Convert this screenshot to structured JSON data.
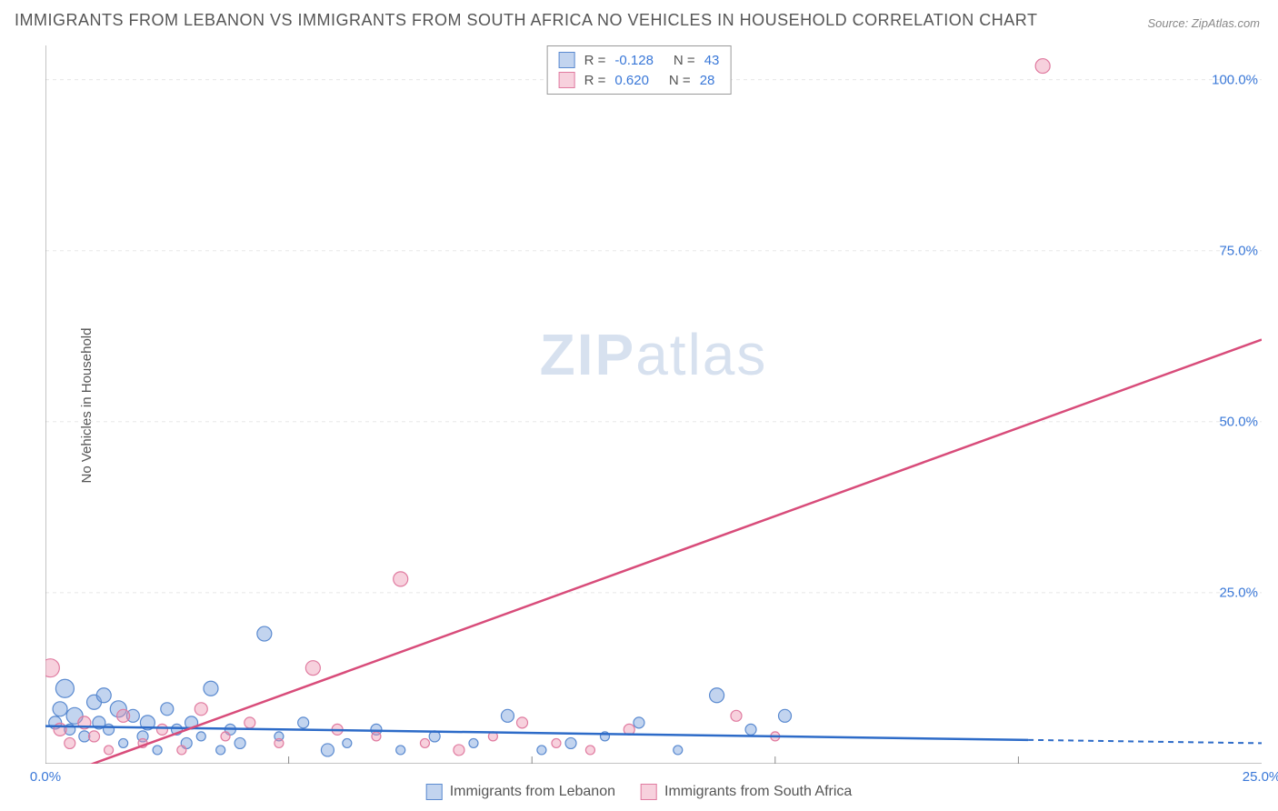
{
  "title": "IMMIGRANTS FROM LEBANON VS IMMIGRANTS FROM SOUTH AFRICA NO VEHICLES IN HOUSEHOLD CORRELATION CHART",
  "source": "Source: ZipAtlas.com",
  "ylabel": "No Vehicles in Household",
  "watermark_bold": "ZIP",
  "watermark_rest": "atlas",
  "chart": {
    "type": "scatter",
    "xlim": [
      0,
      25
    ],
    "ylim": [
      0,
      105
    ],
    "xtick_labels": [
      "0.0%",
      "25.0%"
    ],
    "xtick_positions": [
      0,
      25
    ],
    "ytick_labels": [
      "25.0%",
      "50.0%",
      "75.0%",
      "100.0%"
    ],
    "ytick_positions": [
      25,
      50,
      75,
      100
    ],
    "x_minor_ticks": [
      5,
      10,
      15,
      20
    ],
    "grid_color": "#e8e8e8",
    "axis_color": "#888888",
    "background_color": "#ffffff",
    "series": [
      {
        "name": "Immigrants from Lebanon",
        "fill": "rgba(120,160,220,0.45)",
        "stroke": "#5a8ad0",
        "line_color": "#2d6bc8",
        "r_value": "-0.128",
        "n_value": "43",
        "trend": {
          "x1": 0,
          "y1": 5.5,
          "x2": 25,
          "y2": 3.0,
          "dash_from_x": 20.2
        },
        "points": [
          {
            "x": 0.2,
            "y": 6,
            "r": 7
          },
          {
            "x": 0.3,
            "y": 8,
            "r": 8
          },
          {
            "x": 0.5,
            "y": 5,
            "r": 6
          },
          {
            "x": 0.6,
            "y": 7,
            "r": 9
          },
          {
            "x": 0.8,
            "y": 4,
            "r": 6
          },
          {
            "x": 1.0,
            "y": 9,
            "r": 8
          },
          {
            "x": 1.1,
            "y": 6,
            "r": 7
          },
          {
            "x": 1.3,
            "y": 5,
            "r": 6
          },
          {
            "x": 1.5,
            "y": 8,
            "r": 9
          },
          {
            "x": 1.6,
            "y": 3,
            "r": 5
          },
          {
            "x": 1.8,
            "y": 7,
            "r": 7
          },
          {
            "x": 2.0,
            "y": 4,
            "r": 6
          },
          {
            "x": 2.1,
            "y": 6,
            "r": 8
          },
          {
            "x": 2.3,
            "y": 2,
            "r": 5
          },
          {
            "x": 2.5,
            "y": 8,
            "r": 7
          },
          {
            "x": 2.7,
            "y": 5,
            "r": 6
          },
          {
            "x": 2.9,
            "y": 3,
            "r": 6
          },
          {
            "x": 3.0,
            "y": 6,
            "r": 7
          },
          {
            "x": 3.2,
            "y": 4,
            "r": 5
          },
          {
            "x": 3.4,
            "y": 11,
            "r": 8
          },
          {
            "x": 3.6,
            "y": 2,
            "r": 5
          },
          {
            "x": 3.8,
            "y": 5,
            "r": 6
          },
          {
            "x": 4.0,
            "y": 3,
            "r": 6
          },
          {
            "x": 4.5,
            "y": 19,
            "r": 8
          },
          {
            "x": 4.8,
            "y": 4,
            "r": 5
          },
          {
            "x": 5.3,
            "y": 6,
            "r": 6
          },
          {
            "x": 5.8,
            "y": 2,
            "r": 7
          },
          {
            "x": 6.2,
            "y": 3,
            "r": 5
          },
          {
            "x": 6.8,
            "y": 5,
            "r": 6
          },
          {
            "x": 7.3,
            "y": 2,
            "r": 5
          },
          {
            "x": 8.0,
            "y": 4,
            "r": 6
          },
          {
            "x": 8.8,
            "y": 3,
            "r": 5
          },
          {
            "x": 9.5,
            "y": 7,
            "r": 7
          },
          {
            "x": 10.2,
            "y": 2,
            "r": 5
          },
          {
            "x": 10.8,
            "y": 3,
            "r": 6
          },
          {
            "x": 11.5,
            "y": 4,
            "r": 5
          },
          {
            "x": 12.2,
            "y": 6,
            "r": 6
          },
          {
            "x": 13.0,
            "y": 2,
            "r": 5
          },
          {
            "x": 13.8,
            "y": 10,
            "r": 8
          },
          {
            "x": 14.5,
            "y": 5,
            "r": 6
          },
          {
            "x": 15.2,
            "y": 7,
            "r": 7
          },
          {
            "x": 0.4,
            "y": 11,
            "r": 10
          },
          {
            "x": 1.2,
            "y": 10,
            "r": 8
          }
        ]
      },
      {
        "name": "Immigrants from South Africa",
        "fill": "rgba(235,140,170,0.4)",
        "stroke": "#e07ba0",
        "line_color": "#d84c7a",
        "r_value": "0.620",
        "n_value": "28",
        "trend": {
          "x1": 0.2,
          "y1": -2,
          "x2": 25,
          "y2": 62
        },
        "points": [
          {
            "x": 0.1,
            "y": 14,
            "r": 10
          },
          {
            "x": 0.3,
            "y": 5,
            "r": 7
          },
          {
            "x": 0.5,
            "y": 3,
            "r": 6
          },
          {
            "x": 0.8,
            "y": 6,
            "r": 7
          },
          {
            "x": 1.0,
            "y": 4,
            "r": 6
          },
          {
            "x": 1.3,
            "y": 2,
            "r": 5
          },
          {
            "x": 1.6,
            "y": 7,
            "r": 7
          },
          {
            "x": 2.0,
            "y": 3,
            "r": 5
          },
          {
            "x": 2.4,
            "y": 5,
            "r": 6
          },
          {
            "x": 2.8,
            "y": 2,
            "r": 5
          },
          {
            "x": 3.2,
            "y": 8,
            "r": 7
          },
          {
            "x": 3.7,
            "y": 4,
            "r": 5
          },
          {
            "x": 4.2,
            "y": 6,
            "r": 6
          },
          {
            "x": 4.8,
            "y": 3,
            "r": 5
          },
          {
            "x": 5.5,
            "y": 14,
            "r": 8
          },
          {
            "x": 6.0,
            "y": 5,
            "r": 6
          },
          {
            "x": 6.8,
            "y": 4,
            "r": 5
          },
          {
            "x": 7.3,
            "y": 27,
            "r": 8
          },
          {
            "x": 7.8,
            "y": 3,
            "r": 5
          },
          {
            "x": 8.5,
            "y": 2,
            "r": 6
          },
          {
            "x": 9.2,
            "y": 4,
            "r": 5
          },
          {
            "x": 9.8,
            "y": 6,
            "r": 6
          },
          {
            "x": 10.5,
            "y": 3,
            "r": 5
          },
          {
            "x": 11.2,
            "y": 2,
            "r": 5
          },
          {
            "x": 12.0,
            "y": 5,
            "r": 6
          },
          {
            "x": 14.2,
            "y": 7,
            "r": 6
          },
          {
            "x": 15.0,
            "y": 4,
            "r": 5
          },
          {
            "x": 20.5,
            "y": 102,
            "r": 8
          }
        ]
      }
    ]
  },
  "legend_bottom": [
    {
      "swatch_fill": "rgba(120,160,220,0.45)",
      "swatch_stroke": "#5a8ad0",
      "label": "Immigrants from Lebanon"
    },
    {
      "swatch_fill": "rgba(235,140,170,0.4)",
      "swatch_stroke": "#e07ba0",
      "label": "Immigrants from South Africa"
    }
  ]
}
